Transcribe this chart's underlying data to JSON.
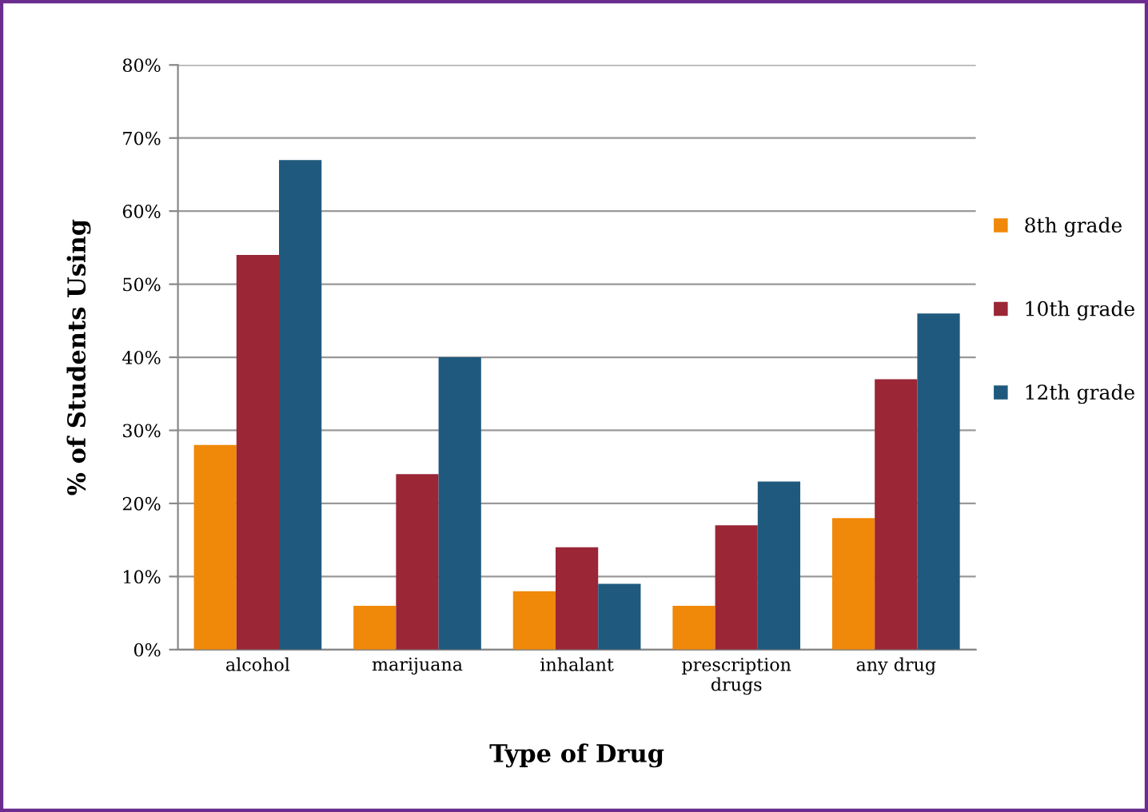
{
  "chart_data": {
    "type": "bar",
    "xlabel": "Type of Drug",
    "ylabel": "% of Students Using",
    "categories": [
      "alcohol",
      "marijuana",
      "inhalant",
      "prescription\ndrugs",
      "any drug"
    ],
    "series": [
      {
        "name": "8th grade",
        "color": "#f0880a",
        "values": [
          28,
          6,
          8,
          6,
          18
        ]
      },
      {
        "name": "10th grade",
        "color": "#9a2636",
        "values": [
          54,
          24,
          14,
          17,
          37
        ]
      },
      {
        "name": "12th grade",
        "color": "#1f5a7e",
        "values": [
          67,
          40,
          9,
          23,
          46
        ]
      }
    ],
    "ylim": [
      0,
      80
    ],
    "yticks": [
      {
        "value": 0,
        "label": "0%"
      },
      {
        "value": 10,
        "label": "10%"
      },
      {
        "value": 20,
        "label": "20%"
      },
      {
        "value": 30,
        "label": "30%"
      },
      {
        "value": 40,
        "label": "40%"
      },
      {
        "value": 50,
        "label": "50%"
      },
      {
        "value": 60,
        "label": "60%"
      },
      {
        "value": 70,
        "label": "70%"
      },
      {
        "value": 80,
        "label": "80%"
      }
    ],
    "grid": "y",
    "legend": "right"
  }
}
